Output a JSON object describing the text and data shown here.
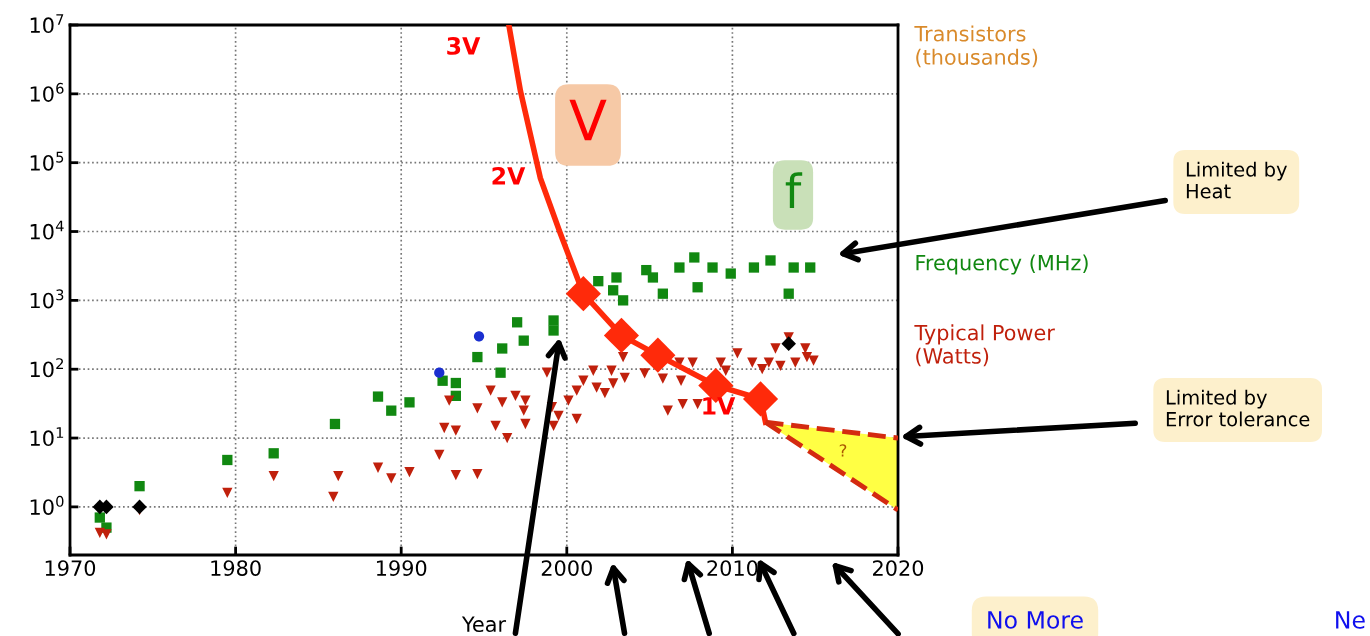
{
  "chart_data": {
    "type": "scatter",
    "xlabel": "Year",
    "xlim": [
      1970,
      2020
    ],
    "xticks": [
      1970,
      1980,
      1990,
      2000,
      2010,
      2020
    ],
    "ylim": [
      0.2,
      10000000
    ],
    "log": true,
    "yticks": [
      {
        "value": 1,
        "label": "10$^{0}$"
      },
      {
        "value": 10,
        "label": "10$^{1}$"
      },
      {
        "value": 100,
        "label": "10$^{2}$"
      },
      {
        "value": 1000,
        "label": "10$^{3}$"
      },
      {
        "value": 10000,
        "label": "10$^{4}$"
      },
      {
        "value": 100000,
        "label": "10$^{5}$"
      },
      {
        "value": 1000000,
        "label": "10$^{6}$"
      },
      {
        "value": 10000000,
        "label": "10$^{7}$"
      }
    ],
    "grid": true,
    "series": [
      {
        "name": "Transistors\n(thousands)",
        "color": "#d98a2b"
      },
      {
        "name": "Frequency (MHz)",
        "color": "#118811",
        "marker": "square",
        "x": [
          1971.8,
          1972.2,
          1974.2,
          1979.5,
          1982.3,
          1986,
          1988.6,
          1989.4,
          1990.5,
          1992.5,
          1993.3,
          1993.3,
          1994.6,
          1996.1,
          1996,
          1997.4,
          1997,
          1999.2,
          1999.2,
          2001.9,
          2003,
          2002.8,
          2003.4,
          2004.8,
          2005.8,
          2005.2,
          2006.8,
          2007.7,
          2007.9,
          2008.8,
          2009.9,
          2011.3,
          2012.3,
          2013.4,
          2013.7,
          2014.7
        ],
        "values": [
          0.7,
          0.5,
          2,
          4.8,
          6,
          16,
          40,
          25,
          33,
          68,
          63,
          41,
          150,
          200,
          89,
          260,
          480,
          365,
          510,
          1900,
          2150,
          1400,
          1000,
          2750,
          1250,
          2150,
          3000,
          4200,
          1550,
          3000,
          2450,
          3000,
          3800,
          1250,
          3000,
          3000
        ]
      },
      {
        "name": "Typical Power\n(Watts)",
        "color": "#c0200c",
        "marker": "triangle",
        "x": [
          1971.8,
          1972.2,
          1974.2,
          1979.5,
          1982.3,
          1985.9,
          1986.2,
          1988.6,
          1989.4,
          1990.5,
          1992.3,
          1992.6,
          1992.9,
          1993.3,
          1993.3,
          1994.6,
          1995.4,
          1995.7,
          1994.6,
          1996.1,
          1996.4,
          1996.9,
          1997.5,
          1997.4,
          1997.5,
          1998.8,
          1999.1,
          1999.2,
          1999.5,
          2000.1,
          2000.6,
          2000.6,
          2001,
          2001.6,
          2001.8,
          2002.3,
          2002.7,
          2002.8,
          2003.4,
          2003.5,
          2004.7,
          2005.8,
          2006.1,
          2006.8,
          2006.9,
          2007,
          2007.6,
          2007.9,
          2009.3,
          2009.6,
          2010.3,
          2011.2,
          2011.8,
          2012.2,
          2012.6,
          2012.9,
          2013.4,
          2013.8,
          2014.4,
          2014.5,
          2014.9
        ],
        "values": [
          0.42,
          0.4,
          0.9,
          1.6,
          2.8,
          1.4,
          2.8,
          3.7,
          2.6,
          3.2,
          5.7,
          14,
          35,
          12.8,
          2.9,
          27,
          49,
          15,
          3,
          33,
          10,
          41,
          35,
          25,
          16,
          89,
          28,
          15,
          21,
          35,
          49,
          19,
          68,
          95,
          54,
          45,
          95,
          62,
          150,
          75,
          87,
          73,
          25,
          125,
          68,
          31,
          125,
          31,
          125,
          95,
          170,
          125,
          100,
          125,
          200,
          112,
          290,
          125,
          200,
          150,
          133
        ]
      },
      {
        "color": "#000000",
        "marker": "diamond",
        "x": [
          1971.8,
          1972.2,
          1974.2,
          2013.4
        ],
        "values": [
          1,
          1,
          1,
          235
        ]
      },
      {
        "color": "#1a2fd0",
        "marker": "circle",
        "x": [
          1992.3,
          1994.7
        ],
        "values": [
          89,
          300
        ]
      },
      {
        "type": "line",
        "color": "#ff2a0a",
        "x": [
          1996.5,
          1997.2,
          1998.4,
          1999.6,
          2001,
          2003.3,
          2005.5,
          2009,
          2011.7,
          2012
        ],
        "values": [
          10000000,
          1100000,
          60000,
          9500,
          1250,
          310,
          160,
          58,
          37,
          17
        ]
      },
      {
        "color": "#ff2a0a",
        "marker": "diamond",
        "x": [
          2001,
          2003.3,
          2005.5,
          2009,
          2011.7
        ],
        "values": [
          1250,
          310,
          160,
          58,
          37
        ]
      },
      {
        "type": "line",
        "color": "#d42a10",
        "line_style": "dashed",
        "x": [
          2012,
          2020
        ],
        "values": [
          17,
          10
        ]
      },
      {
        "type": "line",
        "color": "#d42a10",
        "line_style": "dashed",
        "x": [
          2012,
          2020
        ],
        "values": [
          17,
          0.9
        ]
      }
    ],
    "annotations": [
      "3V",
      "2V",
      "1V",
      "V",
      "f",
      "?",
      "Limited by\nHeat",
      "Limited by\nError tolerance",
      "No More",
      "Ne"
    ]
  }
}
